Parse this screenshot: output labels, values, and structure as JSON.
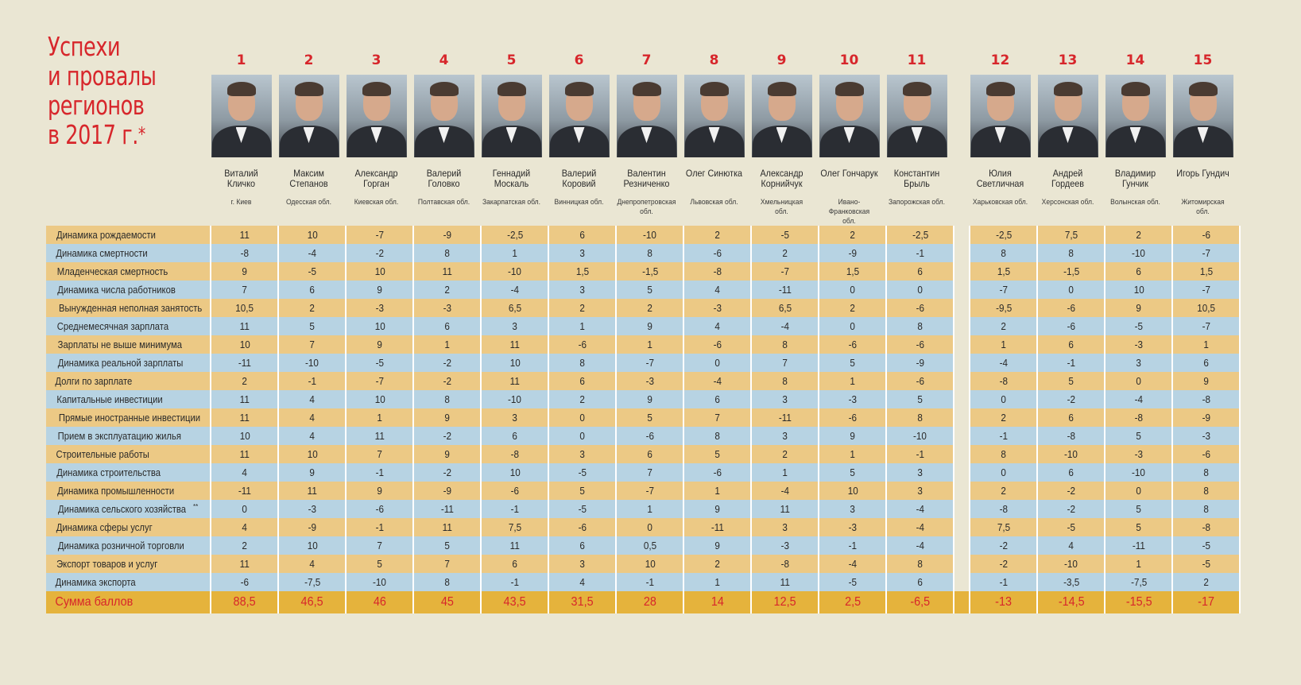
{
  "title": [
    "Успехи",
    "и провалы",
    "регионов",
    "в 2017 г."
  ],
  "title_mark": "*",
  "persons": [
    {
      "rank": "1",
      "name": [
        "Виталий",
        "Кличко"
      ],
      "region": [
        "г. Киев"
      ]
    },
    {
      "rank": "2",
      "name": [
        "Максим",
        "Степанов"
      ],
      "region": [
        "Одесская обл."
      ]
    },
    {
      "rank": "3",
      "name": [
        "Александр",
        "Горган"
      ],
      "region": [
        "Киевская обл."
      ]
    },
    {
      "rank": "4",
      "name": [
        "Валерий",
        "Головко"
      ],
      "region": [
        "Полтавская обл."
      ]
    },
    {
      "rank": "5",
      "name": [
        "Геннадий",
        "Москаль"
      ],
      "region": [
        "Закарпатская обл."
      ]
    },
    {
      "rank": "6",
      "name": [
        "Валерий",
        "Коровий"
      ],
      "region": [
        "Винницкая обл."
      ]
    },
    {
      "rank": "7",
      "name": [
        "Валентин",
        "Резниченко"
      ],
      "region": [
        "Днепропетровская",
        "обл."
      ]
    },
    {
      "rank": "8",
      "name": [
        "Олег Синютка"
      ],
      "region": [
        "Львовская обл."
      ]
    },
    {
      "rank": "9",
      "name": [
        "Александр",
        "Корнийчук"
      ],
      "region": [
        "Хмельницкая",
        "обл."
      ]
    },
    {
      "rank": "10",
      "name": [
        "Олег Гончарук"
      ],
      "region": [
        "Ивано-",
        "Франковская",
        "обл."
      ]
    },
    {
      "rank": "11",
      "name": [
        "Константин",
        "Брыль"
      ],
      "region": [
        "Запорожская обл."
      ]
    },
    {
      "rank": "12",
      "name": [
        "Юлия",
        "Светличная"
      ],
      "region": [
        "Харьковская обл."
      ]
    },
    {
      "rank": "13",
      "name": [
        "Андрей",
        "Гордеев"
      ],
      "region": [
        "Херсонская обл."
      ]
    },
    {
      "rank": "14",
      "name": [
        "Владимир",
        "Гунчик"
      ],
      "region": [
        "Волынская обл."
      ]
    },
    {
      "rank": "15",
      "name": [
        "Игорь Гундич"
      ],
      "region": [
        "Житомирская",
        "обл."
      ]
    }
  ],
  "rows": [
    {
      "label": "Динамика рождаемости",
      "values": [
        "11",
        "10",
        "-7",
        "-9",
        "-2,5",
        "6",
        "-10",
        "2",
        "-5",
        "2",
        "-2,5",
        "-2,5",
        "7,5",
        "2",
        "-6"
      ]
    },
    {
      "label": "Динамика смертности",
      "values": [
        "-8",
        "-4",
        "-2",
        "8",
        "1",
        "3",
        "8",
        "-6",
        "2",
        "-9",
        "-1",
        "8",
        "8",
        "-10",
        "-7"
      ]
    },
    {
      "label": "Младенческая смертность",
      "values": [
        "9",
        "-5",
        "10",
        "11",
        "-10",
        "1,5",
        "-1,5",
        "-8",
        "-7",
        "1,5",
        "6",
        "1,5",
        "-1,5",
        "6",
        "1,5"
      ]
    },
    {
      "label": "Динамика числа работников",
      "values": [
        "7",
        "6",
        "9",
        "2",
        "-4",
        "3",
        "5",
        "4",
        "-11",
        "0",
        "0",
        "-7",
        "0",
        "10",
        "-7"
      ]
    },
    {
      "label": "Вынужденная неполная занятость",
      "values": [
        "10,5",
        "2",
        "-3",
        "-3",
        "6,5",
        "2",
        "2",
        "-3",
        "6,5",
        "2",
        "-6",
        "-9,5",
        "-6",
        "9",
        "10,5"
      ]
    },
    {
      "label": "Среднемесячная зарплата",
      "values": [
        "11",
        "5",
        "10",
        "6",
        "3",
        "1",
        "9",
        "4",
        "-4",
        "0",
        "8",
        "2",
        "-6",
        "-5",
        "-7"
      ]
    },
    {
      "label": "Зарплаты не выше минимума",
      "values": [
        "10",
        "7",
        "9",
        "1",
        "11",
        "-6",
        "1",
        "-6",
        "8",
        "-6",
        "-6",
        "1",
        "6",
        "-3",
        "1"
      ]
    },
    {
      "label": "Динамика реальной зарплаты",
      "values": [
        "-11",
        "-10",
        "-5",
        "-2",
        "10",
        "8",
        "-7",
        "0",
        "7",
        "5",
        "-9",
        "-4",
        "-1",
        "3",
        "6"
      ]
    },
    {
      "label": "Долги по зарплате",
      "values": [
        "2",
        "-1",
        "-7",
        "-2",
        "11",
        "6",
        "-3",
        "-4",
        "8",
        "1",
        "-6",
        "-8",
        "5",
        "0",
        "9"
      ]
    },
    {
      "label": "Капитальные инвестиции",
      "values": [
        "11",
        "4",
        "10",
        "8",
        "-10",
        "2",
        "9",
        "6",
        "3",
        "-3",
        "5",
        "0",
        "-2",
        "-4",
        "-8"
      ]
    },
    {
      "label": "Прямые иностранные инвестиции",
      "values": [
        "11",
        "4",
        "1",
        "9",
        "3",
        "0",
        "5",
        "7",
        "-11",
        "-6",
        "8",
        "2",
        "6",
        "-8",
        "-9"
      ]
    },
    {
      "label": "Прием в эксплуатацию жилья",
      "values": [
        "10",
        "4",
        "11",
        "-2",
        "6",
        "0",
        "-6",
        "8",
        "3",
        "9",
        "-10",
        "-1",
        "-8",
        "5",
        "-3"
      ]
    },
    {
      "label": "Строительные работы",
      "values": [
        "11",
        "10",
        "7",
        "9",
        "-8",
        "3",
        "6",
        "5",
        "2",
        "1",
        "-1",
        "8",
        "-10",
        "-3",
        "-6"
      ]
    },
    {
      "label": "Динамика строительства",
      "values": [
        "4",
        "9",
        "-1",
        "-2",
        "10",
        "-5",
        "7",
        "-6",
        "1",
        "5",
        "3",
        "0",
        "6",
        "-10",
        "8"
      ]
    },
    {
      "label": "Динамика промышленности",
      "values": [
        "-11",
        "11",
        "9",
        "-9",
        "-6",
        "5",
        "-7",
        "1",
        "-4",
        "10",
        "3",
        "2",
        "-2",
        "0",
        "8"
      ]
    },
    {
      "label": "Динамика сельского хозяйства",
      "mark": "**",
      "values": [
        "0",
        "-3",
        "-6",
        "-11",
        "-1",
        "-5",
        "1",
        "9",
        "11",
        "3",
        "-4",
        "-8",
        "-2",
        "5",
        "8"
      ]
    },
    {
      "label": "Динамика сферы услуг",
      "values": [
        "4",
        "-9",
        "-1",
        "11",
        "7,5",
        "-6",
        "0",
        "-11",
        "3",
        "-3",
        "-4",
        "7,5",
        "-5",
        "5",
        "-8"
      ]
    },
    {
      "label": "Динамика розничной торговли",
      "values": [
        "2",
        "10",
        "7",
        "5",
        "11",
        "6",
        "0,5",
        "9",
        "-3",
        "-1",
        "-4",
        "-2",
        "4",
        "-11",
        "-5"
      ]
    },
    {
      "label": "Экспорт товаров и услуг",
      "values": [
        "11",
        "4",
        "5",
        "7",
        "6",
        "3",
        "10",
        "2",
        "-8",
        "-4",
        "8",
        "-2",
        "-10",
        "1",
        "-5"
      ]
    },
    {
      "label": "Динамика экспорта",
      "values": [
        "-6",
        "-7,5",
        "-10",
        "8",
        "-1",
        "4",
        "-1",
        "1",
        "11",
        "-5",
        "6",
        "-1",
        "-3,5",
        "-7,5",
        "2"
      ]
    }
  ],
  "total": {
    "label": "Сумма баллов",
    "values": [
      "88,5",
      "46,5",
      "46",
      "45",
      "43,5",
      "31,5",
      "28",
      "14",
      "12,5",
      "2,5",
      "-6,5",
      "-13",
      "-14,5",
      "-15,5",
      "-17"
    ]
  }
}
